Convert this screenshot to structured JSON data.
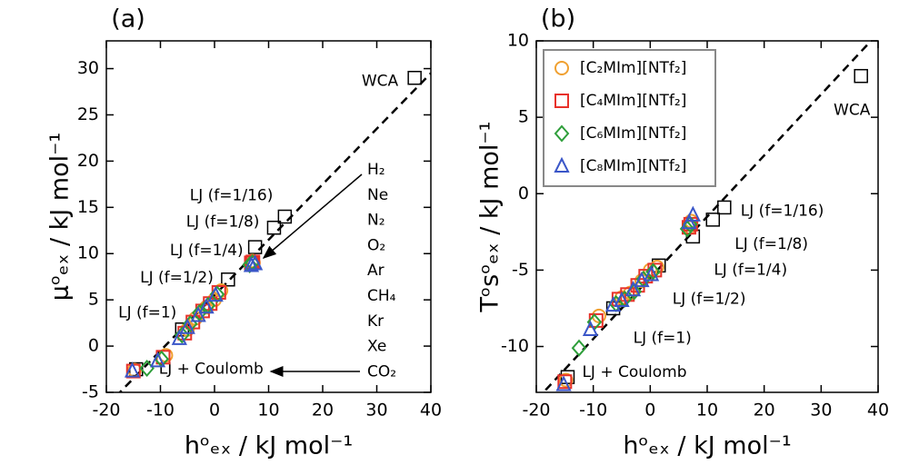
{
  "chart_data": [
    {
      "type": "scatter",
      "title": "(a)",
      "xlabel": "hᵒₑₓ / kJ mol⁻¹",
      "ylabel": "μᵒₑₓ / kJ mol⁻¹",
      "xlim": [
        -20,
        40
      ],
      "ylim": [
        -5,
        33
      ],
      "xticks": [
        -20,
        -10,
        0,
        10,
        20,
        30,
        40
      ],
      "yticks": [
        -5,
        0,
        5,
        10,
        15,
        20,
        25,
        30
      ],
      "series": [
        {
          "marker": "circle",
          "color": "#f0a030",
          "x": [
            7.2,
            7.0,
            1.2,
            0.0,
            -1.5,
            -3.5,
            -5.0,
            -9.0,
            -14.8
          ],
          "values": [
            9.0,
            9.2,
            6.0,
            5.0,
            4.2,
            3.0,
            1.8,
            -1.0,
            -2.6
          ]
        },
        {
          "marker": "square",
          "color": "#e8312a",
          "x": [
            7.1,
            6.8,
            0.8,
            -0.8,
            -2.2,
            -4.0,
            -5.5,
            -9.5,
            -15.0
          ],
          "values": [
            9.1,
            9.0,
            5.8,
            4.6,
            3.8,
            2.6,
            1.4,
            -1.2,
            -2.7
          ]
        },
        {
          "marker": "diamond",
          "color": "#2e9e3a",
          "x": [
            7.0,
            6.5,
            0.5,
            -1.2,
            -2.8,
            -4.5,
            -6.0,
            -9.8,
            -12.5
          ],
          "values": [
            9.0,
            8.8,
            5.6,
            4.4,
            3.6,
            2.4,
            1.2,
            -1.4,
            -2.4
          ]
        },
        {
          "marker": "triangle",
          "color": "#3a56c8",
          "x": [
            7.5,
            6.8,
            0.2,
            -1.5,
            -3.0,
            -5.0,
            -6.5,
            -10.5,
            -15.2
          ],
          "values": [
            8.9,
            8.7,
            5.5,
            4.2,
            3.3,
            2.0,
            0.8,
            -1.6,
            -2.7
          ]
        }
      ],
      "reference": {
        "marker": "square",
        "color": "#000000",
        "labels": [
          "WCA",
          "LJ (f=1/16)",
          "LJ (f=1/8)",
          "LJ (f=1/4)",
          "LJ (f=1/2)",
          "LJ (f=1)",
          "LJ + Coulomb"
        ],
        "x": [
          37,
          13,
          11,
          7.5,
          2.5,
          -6,
          -14.5
        ],
        "values": [
          29,
          14,
          12.8,
          10.7,
          7.2,
          1.8,
          -2.5
        ]
      },
      "fit_line": {
        "x": [
          -20,
          40
        ],
        "values": [
          -6.5,
          29.5
        ]
      },
      "gases": [
        "H₂",
        "Ne",
        "N₂",
        "O₂",
        "Ar",
        "CH₄",
        "Kr",
        "Xe",
        "CO₂"
      ]
    },
    {
      "type": "scatter",
      "title": "(b)",
      "xlabel": "hᵒₑₓ / kJ mol⁻¹",
      "ylabel": "Tᵒsᵒₑₓ / kJ mol⁻¹",
      "xlim": [
        -20,
        40
      ],
      "ylim": [
        -13,
        10
      ],
      "xticks": [
        -20,
        -10,
        0,
        10,
        20,
        30,
        40
      ],
      "yticks": [
        -10,
        -5,
        0,
        5,
        10
      ],
      "legend": "upper left",
      "series": [
        {
          "name": "[C₂MIm][NTf₂]",
          "marker": "circle",
          "color": "#f0a030",
          "x": [
            7.2,
            7.0,
            1.2,
            0.0,
            -1.5,
            -3.5,
            -5.0,
            -9.0,
            -14.8
          ],
          "values": [
            -1.8,
            -2.2,
            -4.8,
            -5.0,
            -5.7,
            -6.5,
            -6.8,
            -8.0,
            -12.2
          ]
        },
        {
          "name": "[C₄MIm][NTf₂]",
          "marker": "square",
          "color": "#e8312a",
          "x": [
            7.1,
            6.8,
            0.8,
            -0.8,
            -2.2,
            -4.0,
            -5.5,
            -9.5,
            -15.0
          ],
          "values": [
            -2.0,
            -2.2,
            -5.0,
            -5.4,
            -6.0,
            -6.6,
            -6.9,
            -8.3,
            -12.3
          ]
        },
        {
          "name": "[C₆MIm][NTf₂]",
          "marker": "diamond",
          "color": "#2e9e3a",
          "x": [
            7.0,
            6.5,
            0.5,
            -1.2,
            -2.8,
            -4.5,
            -6.0,
            -9.8,
            -12.5
          ],
          "values": [
            -2.0,
            -2.3,
            -5.1,
            -5.6,
            -6.4,
            -6.9,
            -7.2,
            -8.4,
            -10.1
          ]
        },
        {
          "name": "[C₈MIm][NTf₂]",
          "marker": "triangle",
          "color": "#3a56c8",
          "x": [
            7.5,
            6.8,
            0.2,
            -1.5,
            -3.0,
            -5.0,
            -6.5,
            -10.5,
            -15.2
          ],
          "values": [
            -1.4,
            -1.9,
            -5.3,
            -5.7,
            -6.3,
            -7.0,
            -7.3,
            -8.9,
            -12.5
          ]
        }
      ],
      "reference": {
        "marker": "square",
        "color": "#000000",
        "labels": [
          "WCA",
          "LJ (f=1/16)",
          "LJ (f=1/8)",
          "LJ (f=1/4)",
          "LJ (f=1/2)",
          "LJ (f=1)",
          "LJ + Coulomb"
        ],
        "x": [
          37,
          13,
          11,
          7.5,
          1.5,
          -6.5,
          -14.5
        ],
        "values": [
          7.7,
          -0.9,
          -1.7,
          -2.8,
          -4.7,
          -7.5,
          -12
        ]
      },
      "fit_line": {
        "x": [
          -20,
          40
        ],
        "values": [
          -13.5,
          10.5
        ]
      }
    }
  ]
}
